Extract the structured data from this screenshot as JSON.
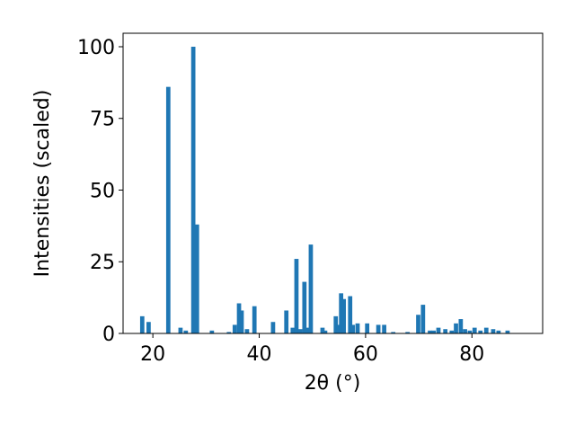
{
  "chart_data": {
    "type": "bar",
    "x_label": "2θ (°)",
    "y_label": "Intensities (scaled)",
    "color": "#1f77b4",
    "x": [
      18.0,
      19.2,
      22.9,
      25.2,
      26.2,
      27.6,
      28.3,
      31.1,
      34.3,
      35.4,
      36.2,
      36.7,
      37.7,
      39.1,
      42.6,
      45.1,
      46.3,
      47.0,
      47.7,
      48.5,
      49.2,
      49.7,
      51.9,
      52.4,
      54.4,
      54.9,
      55.4,
      55.9,
      57.1,
      57.6,
      58.5,
      60.3,
      62.4,
      63.5,
      65.2,
      67.9,
      69.9,
      70.8,
      72.1,
      72.8,
      73.7,
      75.0,
      76.2,
      77.0,
      77.9,
      78.7,
      79.6,
      80.5,
      81.6,
      82.7,
      84.0,
      85.0,
      86.7
    ],
    "values": [
      6,
      4,
      86,
      2,
      1,
      100,
      38,
      1,
      0.5,
      3,
      10.5,
      8,
      1.5,
      9.5,
      4,
      8,
      2,
      26,
      1.5,
      18,
      2,
      31,
      2,
      1,
      6,
      3,
      14,
      12,
      13,
      3,
      3.5,
      3.5,
      3,
      3,
      0.5,
      0.5,
      6.5,
      10,
      1,
      1,
      2,
      1.5,
      1,
      3.5,
      5,
      1.5,
      1,
      2,
      1,
      2,
      1.5,
      1,
      1
    ],
    "xlim": [
      14.4,
      93.3
    ],
    "ylim": [
      0,
      104.7
    ],
    "xticks": [
      20,
      40,
      60,
      80
    ],
    "yticks": [
      0,
      25,
      50,
      75,
      100
    ]
  }
}
